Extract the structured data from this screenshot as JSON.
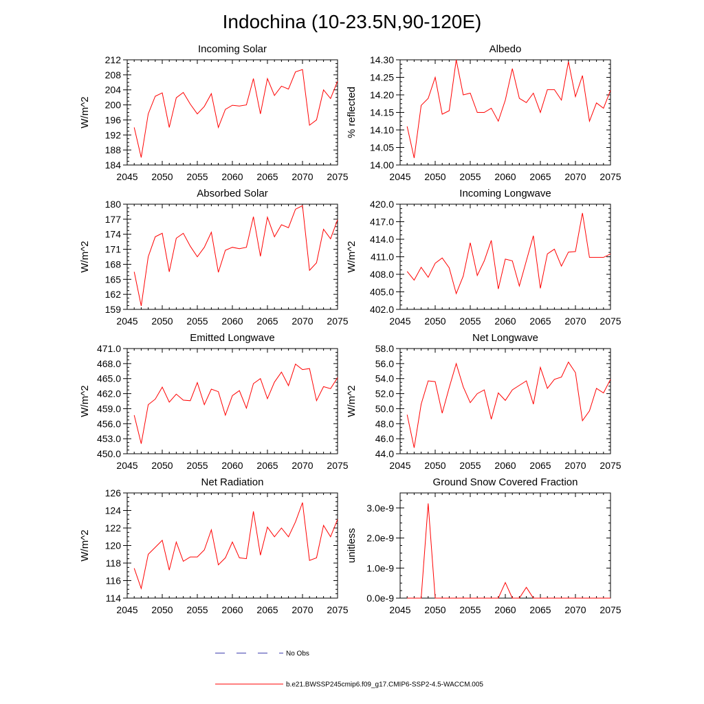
{
  "figure": {
    "title": "Indochina (10-23.5N,90-120E)",
    "series_color": "#ff0000",
    "obs_color": "#3333aa"
  },
  "legend": {
    "obs_label": "No Obs",
    "model_label": "b.e21.BWSSP245cmip6.f09_g17.CMIP6-SSP2-4.5-WACCM.005"
  },
  "chart_data": [
    {
      "type": "line",
      "title": "Incoming Solar",
      "ylabel": "W/m^2",
      "xlim": [
        2045,
        2075
      ],
      "ylim": [
        184,
        212
      ],
      "xticks": [
        "2045",
        "2050",
        "2055",
        "2060",
        "2065",
        "2070",
        "2075"
      ],
      "yticks": [
        "184",
        "188",
        "192",
        "196",
        "200",
        "204",
        "208",
        "212"
      ],
      "x": [
        2046,
        2047,
        2048,
        2049,
        2050,
        2051,
        2052,
        2053,
        2054,
        2055,
        2056,
        2057,
        2058,
        2059,
        2060,
        2061,
        2062,
        2063,
        2064,
        2065,
        2066,
        2067,
        2068,
        2069,
        2070,
        2071,
        2072,
        2073,
        2074,
        2075
      ],
      "values": [
        194.0,
        186.0,
        197.6,
        202.3,
        203.2,
        194.0,
        201.9,
        203.3,
        200.2,
        197.6,
        199.6,
        203.0,
        194.0,
        198.8,
        199.9,
        199.7,
        200.0,
        207.0,
        197.6,
        207.0,
        202.5,
        205.0,
        204.2,
        208.8,
        209.4,
        194.6,
        196.0,
        204.0,
        201.7,
        206.3
      ]
    },
    {
      "type": "line",
      "title": "Albedo",
      "ylabel": "% reflected",
      "xlim": [
        2045,
        2075
      ],
      "ylim": [
        14.0,
        14.3
      ],
      "xticks": [
        "2045",
        "2050",
        "2055",
        "2060",
        "2065",
        "2070",
        "2075"
      ],
      "yticks": [
        "14.00",
        "14.05",
        "14.10",
        "14.15",
        "14.20",
        "14.25",
        "14.30"
      ],
      "x": [
        2046,
        2047,
        2048,
        2049,
        2050,
        2051,
        2052,
        2053,
        2054,
        2055,
        2056,
        2057,
        2058,
        2059,
        2060,
        2061,
        2062,
        2063,
        2064,
        2065,
        2066,
        2067,
        2068,
        2069,
        2070,
        2071,
        2072,
        2073,
        2074,
        2075
      ],
      "values": [
        14.11,
        14.02,
        14.17,
        14.19,
        14.25,
        14.145,
        14.155,
        14.3,
        14.2,
        14.205,
        14.15,
        14.15,
        14.162,
        14.125,
        14.185,
        14.275,
        14.19,
        14.178,
        14.205,
        14.15,
        14.215,
        14.215,
        14.185,
        14.295,
        14.195,
        14.255,
        14.125,
        14.177,
        14.162,
        14.213
      ]
    },
    {
      "type": "line",
      "title": "Absorbed Solar",
      "ylabel": "W/m^2",
      "xlim": [
        2045,
        2075
      ],
      "ylim": [
        159,
        180
      ],
      "xticks": [
        "2045",
        "2050",
        "2055",
        "2060",
        "2065",
        "2070",
        "2075"
      ],
      "yticks": [
        "159",
        "162",
        "165",
        "168",
        "171",
        "174",
        "177",
        "180"
      ],
      "x": [
        2046,
        2047,
        2048,
        2049,
        2050,
        2051,
        2052,
        2053,
        2054,
        2055,
        2056,
        2057,
        2058,
        2059,
        2060,
        2061,
        2062,
        2063,
        2064,
        2065,
        2066,
        2067,
        2068,
        2069,
        2070,
        2071,
        2072,
        2073,
        2074,
        2075
      ],
      "values": [
        166.5,
        159.7,
        169.5,
        173.5,
        174.2,
        166.5,
        173.2,
        174.2,
        171.6,
        169.5,
        171.4,
        174.4,
        166.4,
        170.8,
        171.4,
        171.1,
        171.4,
        177.5,
        169.6,
        177.4,
        173.5,
        175.9,
        175.3,
        179.0,
        179.7,
        166.8,
        168.3,
        175.0,
        173.1,
        176.9
      ]
    },
    {
      "type": "line",
      "title": "Incoming Longwave",
      "ylabel": "W/m^2",
      "xlim": [
        2045,
        2075
      ],
      "ylim": [
        402.0,
        420.0
      ],
      "xticks": [
        "2045",
        "2050",
        "2055",
        "2060",
        "2065",
        "2070",
        "2075"
      ],
      "yticks": [
        "402.0",
        "405.0",
        "408.0",
        "411.0",
        "414.0",
        "417.0",
        "420.0"
      ],
      "x": [
        2046,
        2047,
        2048,
        2049,
        2050,
        2051,
        2052,
        2053,
        2054,
        2055,
        2056,
        2057,
        2058,
        2059,
        2060,
        2061,
        2062,
        2063,
        2064,
        2065,
        2066,
        2067,
        2068,
        2069,
        2070,
        2071,
        2072,
        2073,
        2074,
        2075
      ],
      "values": [
        408.5,
        407.0,
        409.2,
        407.5,
        409.9,
        410.8,
        409.1,
        404.7,
        407.7,
        413.4,
        407.8,
        410.3,
        413.8,
        405.5,
        410.6,
        410.3,
        406.0,
        410.3,
        414.6,
        405.6,
        411.5,
        412.3,
        409.4,
        411.8,
        411.9,
        418.5,
        410.9,
        410.9,
        410.9,
        411.5
      ]
    },
    {
      "type": "line",
      "title": "Emitted Longwave",
      "ylabel": "W/m^2",
      "xlim": [
        2045,
        2075
      ],
      "ylim": [
        450.0,
        471.0
      ],
      "xticks": [
        "2045",
        "2050",
        "2055",
        "2060",
        "2065",
        "2070",
        "2075"
      ],
      "yticks": [
        "450.0",
        "453.0",
        "456.0",
        "459.0",
        "462.0",
        "465.0",
        "468.0",
        "471.0"
      ],
      "x": [
        2046,
        2047,
        2048,
        2049,
        2050,
        2051,
        2052,
        2053,
        2054,
        2055,
        2056,
        2057,
        2058,
        2059,
        2060,
        2061,
        2062,
        2063,
        2064,
        2065,
        2066,
        2067,
        2068,
        2069,
        2070,
        2071,
        2072,
        2073,
        2074,
        2075
      ],
      "values": [
        457.7,
        452.0,
        459.8,
        460.9,
        463.3,
        460.3,
        461.9,
        460.7,
        460.6,
        464.2,
        459.8,
        462.9,
        462.4,
        457.7,
        461.6,
        462.6,
        459.1,
        464.0,
        465.0,
        461.0,
        464.3,
        466.3,
        463.6,
        467.9,
        466.8,
        467.0,
        460.6,
        463.4,
        463.0,
        465.2
      ]
    },
    {
      "type": "line",
      "title": "Net Longwave",
      "ylabel": "W/m^2",
      "xlim": [
        2045,
        2075
      ],
      "ylim": [
        44.0,
        58.0
      ],
      "xticks": [
        "2045",
        "2050",
        "2055",
        "2060",
        "2065",
        "2070",
        "2075"
      ],
      "yticks": [
        "44.0",
        "46.0",
        "48.0",
        "50.0",
        "52.0",
        "54.0",
        "56.0",
        "58.0"
      ],
      "x": [
        2046,
        2047,
        2048,
        2049,
        2050,
        2051,
        2052,
        2053,
        2054,
        2055,
        2056,
        2057,
        2058,
        2059,
        2060,
        2061,
        2062,
        2063,
        2064,
        2065,
        2066,
        2067,
        2068,
        2069,
        2070,
        2071,
        2072,
        2073,
        2074,
        2075
      ],
      "values": [
        49.2,
        44.8,
        50.6,
        53.7,
        53.6,
        49.4,
        52.8,
        56.0,
        52.9,
        50.8,
        52.0,
        52.5,
        48.6,
        52.1,
        51.1,
        52.5,
        53.1,
        53.7,
        50.6,
        55.5,
        52.7,
        53.9,
        54.2,
        56.2,
        54.8,
        48.4,
        49.7,
        52.7,
        52.1,
        53.9
      ]
    },
    {
      "type": "line",
      "title": "Net Radiation",
      "ylabel": "W/m^2",
      "xlim": [
        2045,
        2075
      ],
      "ylim": [
        114,
        126
      ],
      "xticks": [
        "2045",
        "2050",
        "2055",
        "2060",
        "2065",
        "2070",
        "2075"
      ],
      "yticks": [
        "114",
        "116",
        "118",
        "120",
        "122",
        "124",
        "126"
      ],
      "x": [
        2046,
        2047,
        2048,
        2049,
        2050,
        2051,
        2052,
        2053,
        2054,
        2055,
        2056,
        2057,
        2058,
        2059,
        2060,
        2061,
        2062,
        2063,
        2064,
        2065,
        2066,
        2067,
        2068,
        2069,
        2070,
        2071,
        2072,
        2073,
        2074,
        2075
      ],
      "values": [
        117.4,
        115.1,
        119.0,
        119.8,
        120.6,
        117.2,
        120.4,
        118.2,
        118.7,
        118.7,
        119.5,
        121.8,
        117.8,
        118.6,
        120.4,
        118.6,
        118.5,
        123.9,
        118.9,
        122.1,
        121.0,
        122.0,
        121.0,
        122.7,
        124.9,
        118.3,
        118.6,
        122.3,
        121.0,
        123.0
      ]
    },
    {
      "type": "line",
      "title": "Ground Snow Covered Fraction",
      "ylabel": "unitless",
      "xlim": [
        2045,
        2075
      ],
      "ylim": [
        0,
        3.5e-09
      ],
      "xticks": [
        "2045",
        "2050",
        "2055",
        "2060",
        "2065",
        "2070",
        "2075"
      ],
      "yticks": [
        "0.0e-9",
        "1.0e-9",
        "2.0e-9",
        "3.0e-9"
      ],
      "ytick_values": [
        0,
        1e-09,
        2e-09,
        3e-09
      ],
      "x": [
        2046,
        2047,
        2048,
        2049,
        2050,
        2051,
        2052,
        2053,
        2054,
        2055,
        2056,
        2057,
        2058,
        2059,
        2060,
        2061,
        2062,
        2063,
        2064,
        2065,
        2066,
        2067,
        2068,
        2069,
        2070,
        2071,
        2072,
        2073,
        2074,
        2075
      ],
      "values": [
        0,
        0,
        0,
        3.15e-09,
        0,
        0,
        0,
        0,
        0,
        0,
        0,
        0,
        0,
        0,
        5.2e-10,
        0,
        0,
        3.6e-10,
        0,
        0,
        0,
        0,
        0,
        0,
        0,
        0,
        0,
        0,
        0,
        0
      ]
    }
  ]
}
